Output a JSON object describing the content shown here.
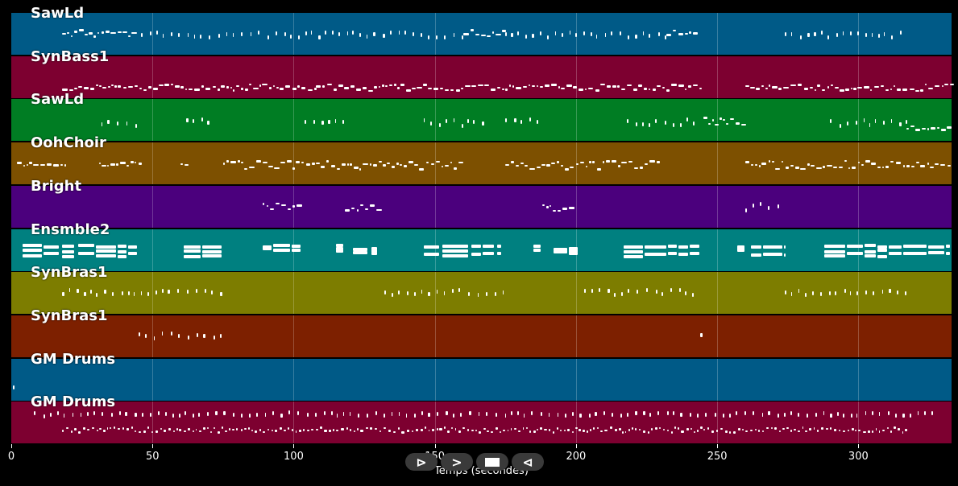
{
  "xaxis": {
    "label": "Temps (secondes)",
    "max": 333,
    "ticks": [
      {
        "value": 0,
        "label": "0"
      },
      {
        "value": 50,
        "label": "50"
      },
      {
        "value": 100,
        "label": "100"
      },
      {
        "value": 150,
        "label": "150"
      },
      {
        "value": 200,
        "label": "200"
      },
      {
        "value": 250,
        "label": "250"
      },
      {
        "value": 300,
        "label": "300"
      }
    ]
  },
  "transport": {
    "play_icon": "play-icon",
    "forward_icon": "forward-icon",
    "stop_icon": "stop-icon",
    "rewind_icon": "rewind-icon",
    "play_label": "⊳",
    "forward_label": ">",
    "rewind_label": "⊲"
  },
  "tracks": [
    {
      "name": "SawLd",
      "color": "#005a87",
      "segments": [
        {
          "start": 18,
          "end": 44,
          "low": 0.38,
          "high": 0.55,
          "style": "dense"
        },
        {
          "start": 46,
          "end": 160,
          "low": 0.42,
          "high": 0.55,
          "style": "sparse"
        },
        {
          "start": 160,
          "end": 175,
          "low": 0.38,
          "high": 0.55,
          "style": "dense"
        },
        {
          "start": 175,
          "end": 232,
          "low": 0.42,
          "high": 0.55,
          "style": "sparse"
        },
        {
          "start": 232,
          "end": 243,
          "low": 0.38,
          "high": 0.55,
          "style": "dense"
        },
        {
          "start": 274,
          "end": 317,
          "low": 0.42,
          "high": 0.55,
          "style": "sparse"
        }
      ]
    },
    {
      "name": "SynBass1",
      "color": "#7d0030",
      "segments": [
        {
          "start": 18,
          "end": 108,
          "low": 0.65,
          "high": 0.8,
          "style": "dense"
        },
        {
          "start": 108,
          "end": 130,
          "low": 0.65,
          "high": 0.8,
          "style": "dense"
        },
        {
          "start": 130,
          "end": 244,
          "low": 0.65,
          "high": 0.8,
          "style": "dense"
        },
        {
          "start": 260,
          "end": 333,
          "low": 0.65,
          "high": 0.8,
          "style": "dense"
        }
      ]
    },
    {
      "name": "SawLd",
      "color": "#007d23",
      "segments": [
        {
          "start": 32,
          "end": 45,
          "low": 0.45,
          "high": 0.6,
          "style": "sparse"
        },
        {
          "start": 62,
          "end": 71,
          "low": 0.45,
          "high": 0.55,
          "style": "sparse"
        },
        {
          "start": 104,
          "end": 118,
          "low": 0.42,
          "high": 0.52,
          "style": "sparse"
        },
        {
          "start": 146,
          "end": 170,
          "low": 0.45,
          "high": 0.6,
          "style": "sparse"
        },
        {
          "start": 175,
          "end": 188,
          "low": 0.42,
          "high": 0.5,
          "style": "sparse"
        },
        {
          "start": 218,
          "end": 242,
          "low": 0.45,
          "high": 0.6,
          "style": "sparse"
        },
        {
          "start": 245,
          "end": 260,
          "low": 0.42,
          "high": 0.6,
          "style": "dense"
        },
        {
          "start": 290,
          "end": 317,
          "low": 0.45,
          "high": 0.6,
          "style": "sparse"
        },
        {
          "start": 317,
          "end": 333,
          "low": 0.62,
          "high": 0.72,
          "style": "dense"
        }
      ]
    },
    {
      "name": "OohChoir",
      "color": "#7d5000",
      "segments": [
        {
          "start": 2,
          "end": 19,
          "low": 0.45,
          "high": 0.55,
          "style": "dense"
        },
        {
          "start": 31,
          "end": 45,
          "low": 0.45,
          "high": 0.55,
          "style": "dense"
        },
        {
          "start": 60,
          "end": 62,
          "low": 0.45,
          "high": 0.55,
          "style": "dense"
        },
        {
          "start": 75,
          "end": 160,
          "low": 0.42,
          "high": 0.62,
          "style": "dense"
        },
        {
          "start": 175,
          "end": 230,
          "low": 0.42,
          "high": 0.62,
          "style": "dense"
        },
        {
          "start": 260,
          "end": 333,
          "low": 0.42,
          "high": 0.62,
          "style": "dense"
        }
      ]
    },
    {
      "name": "Bright",
      "color": "#4b007d",
      "segments": [
        {
          "start": 89,
          "end": 102,
          "low": 0.4,
          "high": 0.55,
          "style": "dense"
        },
        {
          "start": 118,
          "end": 130,
          "low": 0.42,
          "high": 0.58,
          "style": "dense"
        },
        {
          "start": 188,
          "end": 200,
          "low": 0.42,
          "high": 0.58,
          "style": "dense"
        },
        {
          "start": 260,
          "end": 272,
          "low": 0.38,
          "high": 0.55,
          "style": "sparse"
        }
      ]
    },
    {
      "name": "Ensmble2",
      "color": "#008080",
      "segments": [
        {
          "start": 4,
          "end": 45,
          "low": 0.35,
          "high": 0.7,
          "style": "block"
        },
        {
          "start": 61,
          "end": 75,
          "low": 0.35,
          "high": 0.7,
          "style": "block"
        },
        {
          "start": 89,
          "end": 103,
          "low": 0.35,
          "high": 0.5,
          "style": "block"
        },
        {
          "start": 115,
          "end": 118,
          "low": 0.35,
          "high": 0.5,
          "style": "block"
        },
        {
          "start": 121,
          "end": 130,
          "low": 0.42,
          "high": 0.55,
          "style": "block"
        },
        {
          "start": 146,
          "end": 174,
          "low": 0.35,
          "high": 0.7,
          "style": "block"
        },
        {
          "start": 185,
          "end": 188,
          "low": 0.35,
          "high": 0.5,
          "style": "block"
        },
        {
          "start": 192,
          "end": 201,
          "low": 0.42,
          "high": 0.55,
          "style": "block"
        },
        {
          "start": 217,
          "end": 244,
          "low": 0.35,
          "high": 0.7,
          "style": "block"
        },
        {
          "start": 257,
          "end": 260,
          "low": 0.35,
          "high": 0.5,
          "style": "block"
        },
        {
          "start": 262,
          "end": 274,
          "low": 0.38,
          "high": 0.72,
          "style": "block"
        },
        {
          "start": 288,
          "end": 333,
          "low": 0.35,
          "high": 0.7,
          "style": "block"
        }
      ]
    },
    {
      "name": "SynBras1",
      "color": "#7d7d00",
      "segments": [
        {
          "start": 18,
          "end": 75,
          "low": 0.38,
          "high": 0.5,
          "style": "sparse"
        },
        {
          "start": 132,
          "end": 174,
          "low": 0.38,
          "high": 0.5,
          "style": "sparse"
        },
        {
          "start": 203,
          "end": 244,
          "low": 0.38,
          "high": 0.5,
          "style": "sparse"
        },
        {
          "start": 274,
          "end": 317,
          "low": 0.38,
          "high": 0.5,
          "style": "sparse"
        }
      ]
    },
    {
      "name": "SynBras1",
      "color": "#7d2000",
      "segments": [
        {
          "start": 45,
          "end": 75,
          "low": 0.38,
          "high": 0.5,
          "style": "sparse"
        },
        {
          "start": 244,
          "end": 245,
          "low": 0.4,
          "high": 0.5,
          "style": "sparse"
        }
      ]
    },
    {
      "name": "GM Drums",
      "color": "#005a87",
      "segments": [
        {
          "start": 0.5,
          "end": 1,
          "low": 0.62,
          "high": 0.7,
          "style": "sparse"
        }
      ]
    },
    {
      "name": "GM Drums",
      "color": "#7d0030",
      "segments": [
        {
          "start": 8,
          "end": 327,
          "low": 0.22,
          "high": 0.3,
          "style": "sparse"
        },
        {
          "start": 18,
          "end": 317,
          "low": 0.6,
          "high": 0.72,
          "style": "drum"
        }
      ]
    }
  ]
}
